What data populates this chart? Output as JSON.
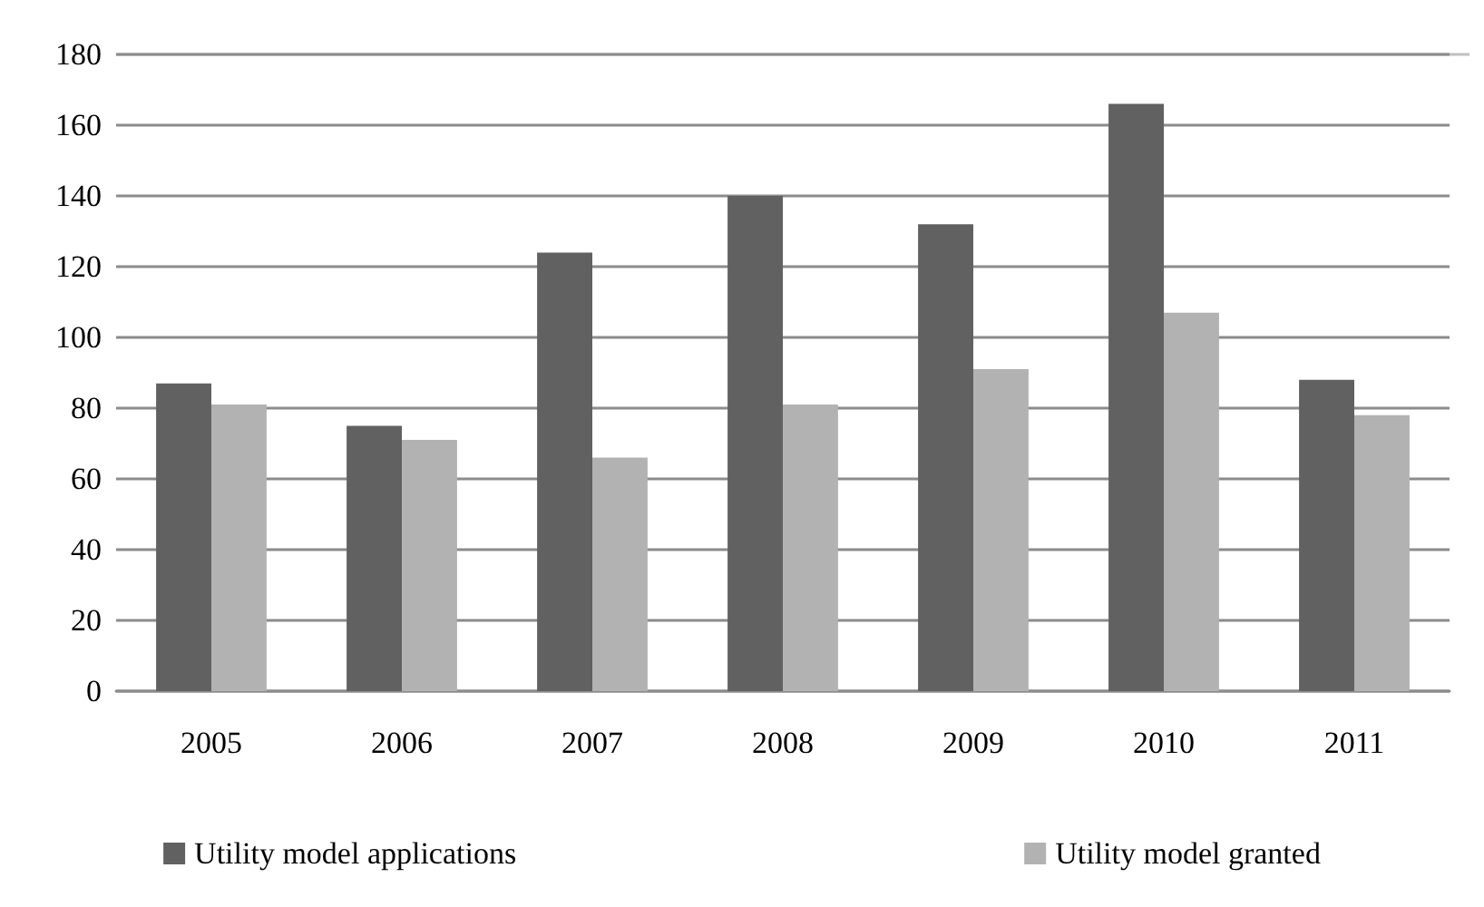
{
  "chart_data": {
    "type": "bar",
    "categories": [
      "2005",
      "2006",
      "2007",
      "2008",
      "2009",
      "2010",
      "2011"
    ],
    "series": [
      {
        "name": "Utility model applications",
        "color": "#616161",
        "values": [
          87,
          75,
          124,
          140,
          132,
          166,
          88
        ]
      },
      {
        "name": "Utility model granted",
        "color": "#b2b2b2",
        "values": [
          81,
          71,
          66,
          81,
          91,
          107,
          78
        ]
      }
    ],
    "ylim": [
      0,
      180
    ],
    "yticks": [
      0,
      20,
      40,
      60,
      80,
      100,
      120,
      140,
      160,
      180
    ],
    "grid": "y",
    "legend": "bottom"
  }
}
